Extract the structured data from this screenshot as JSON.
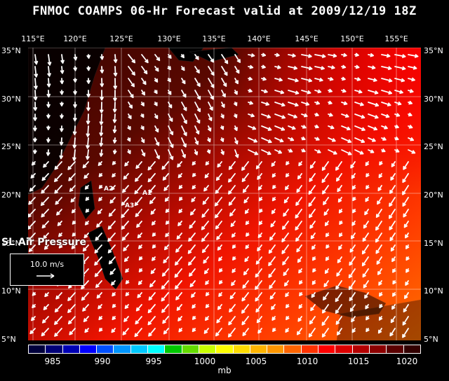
{
  "title": "FNMOC COAMPS 06-Hr Forecast valid at 2009/12/19 18Z",
  "lon_labels": [
    "115°E",
    "120°E",
    "125°E",
    "130°E",
    "135°E",
    "140°E",
    "145°E",
    "150°E",
    "155°E"
  ],
  "lat_labels": [
    "35°N",
    "30°N",
    "25°N",
    "20°N",
    "15°N",
    "10°N",
    "5°N"
  ],
  "stations": [
    "A1",
    "A2",
    "A3"
  ],
  "field_label": "SL Air Pressure",
  "reference_vector": "10.0 m/s",
  "colorbar": {
    "ticks": [
      "985",
      "990",
      "995",
      "1000",
      "1005",
      "1010",
      "1015",
      "1020"
    ],
    "units": "mb",
    "colors": [
      "#00003c",
      "#000078",
      "#0000b4",
      "#0000ff",
      "#0050ff",
      "#0096ff",
      "#00c8ff",
      "#00ffff",
      "#00c800",
      "#64dc00",
      "#c8ff00",
      "#ffff00",
      "#ffdc00",
      "#ffb400",
      "#ff9600",
      "#ff6400",
      "#ff3200",
      "#ff0000",
      "#dc0000",
      "#b40000",
      "#8c0000",
      "#5a0000",
      "#320000"
    ]
  },
  "map_colors": {
    "high_pressure": "#4a0500",
    "mid_pressure": "#ff1a00",
    "low_pressure": "#ff6a00",
    "land": "#000000"
  }
}
